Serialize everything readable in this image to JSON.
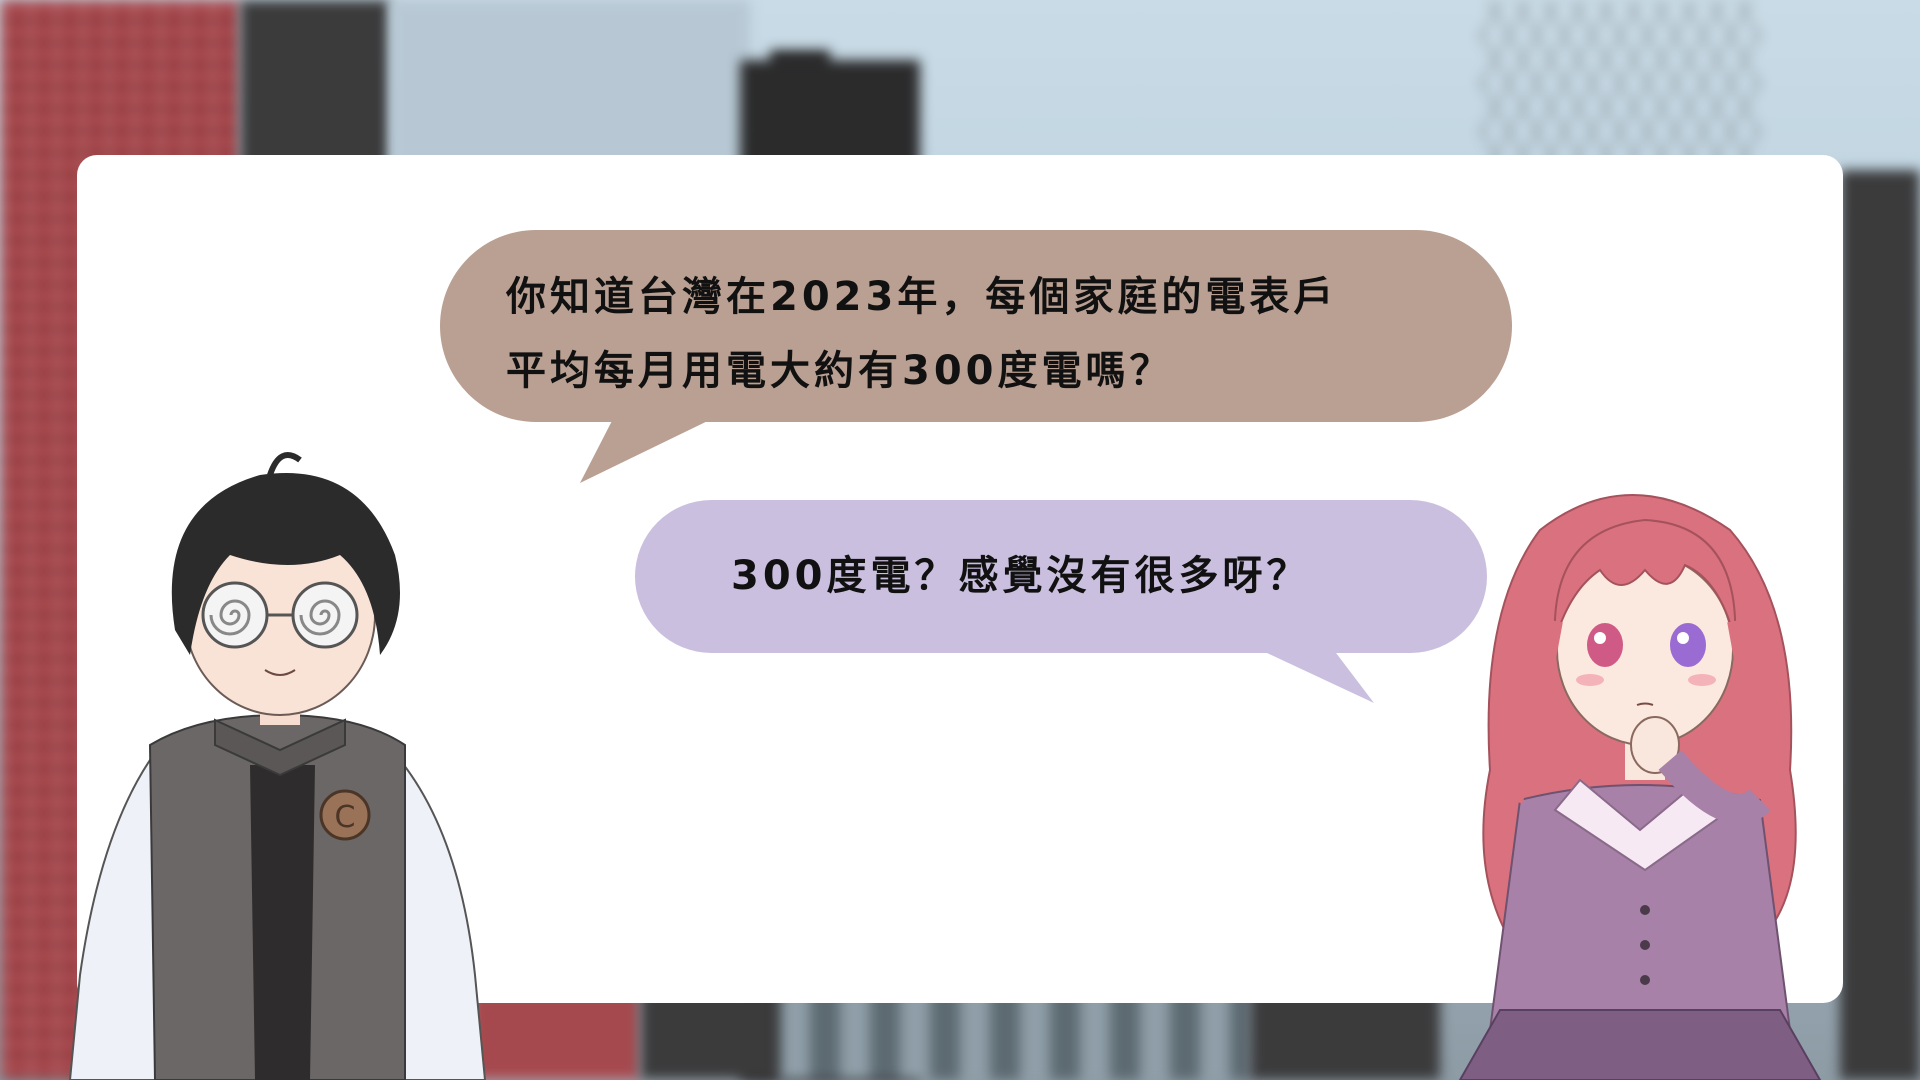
{
  "dialogue": {
    "first_line": {
      "line1": "你知道台灣在2023年，每個家庭的電表戶",
      "line2": "平均每月用電大約有300度電嗎？"
    },
    "second_line": {
      "text": "300度電？感覺沒有很多呀？"
    }
  },
  "colors": {
    "first_bubble": "#b9a092",
    "second_bubble": "#cbbfdf",
    "panel": "#ffffff",
    "text": "#111111"
  },
  "characters": {
    "left": {
      "badge_letter": "C"
    }
  }
}
